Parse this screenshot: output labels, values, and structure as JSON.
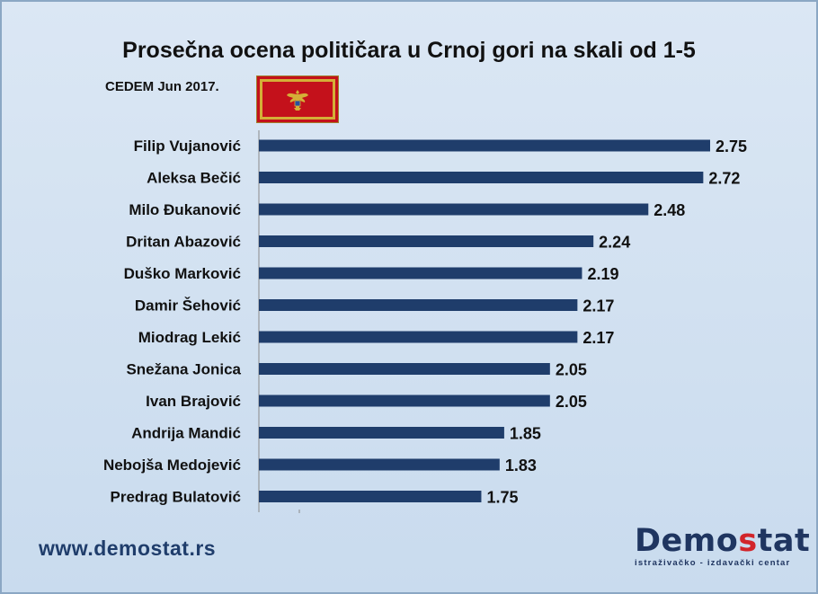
{
  "chart_data": {
    "type": "bar",
    "orientation": "horizontal",
    "title": "Prosečna ocena političara u Crnoj gori na skali od 1-5",
    "subtitle": "CEDEM Jun 2017.",
    "categories": [
      "Filip Vujanović",
      "Aleksa Bečić",
      "Milo Đukanović",
      "Dritan Abazović",
      "Duško Marković",
      "Damir Šehović",
      "Miodrag Lekić",
      "Snežana Jonica",
      "Ivan Brajović",
      "Andrija Mandić",
      "Nebojša Medojević",
      "Predrag Bulatović"
    ],
    "values": [
      2.75,
      2.72,
      2.48,
      2.24,
      2.19,
      2.17,
      2.17,
      2.05,
      2.05,
      1.85,
      1.83,
      1.75
    ],
    "value_labels": [
      "2.75",
      "2.72",
      "2.48",
      "2.24",
      "2.19",
      "2.17",
      "2.17",
      "2.05",
      "2.05",
      "1.85",
      "1.83",
      "1.75"
    ],
    "xlim": [
      0,
      3
    ],
    "grid": false,
    "legend": "none",
    "bar_color": "#1f3d6b"
  },
  "flag": {
    "icon": "montenegro-flag-icon",
    "colors": {
      "field": "#c4111b",
      "border": "#d4af37"
    }
  },
  "footer": {
    "url": "www.demostat.rs",
    "logo_prefix": "Demo",
    "logo_accent": "s",
    "logo_suffix": "tat",
    "logo_tagline": "istraživačko - izdavački centar",
    "colors": {
      "brand": "#1f3560",
      "accent": "#d2242a"
    }
  }
}
